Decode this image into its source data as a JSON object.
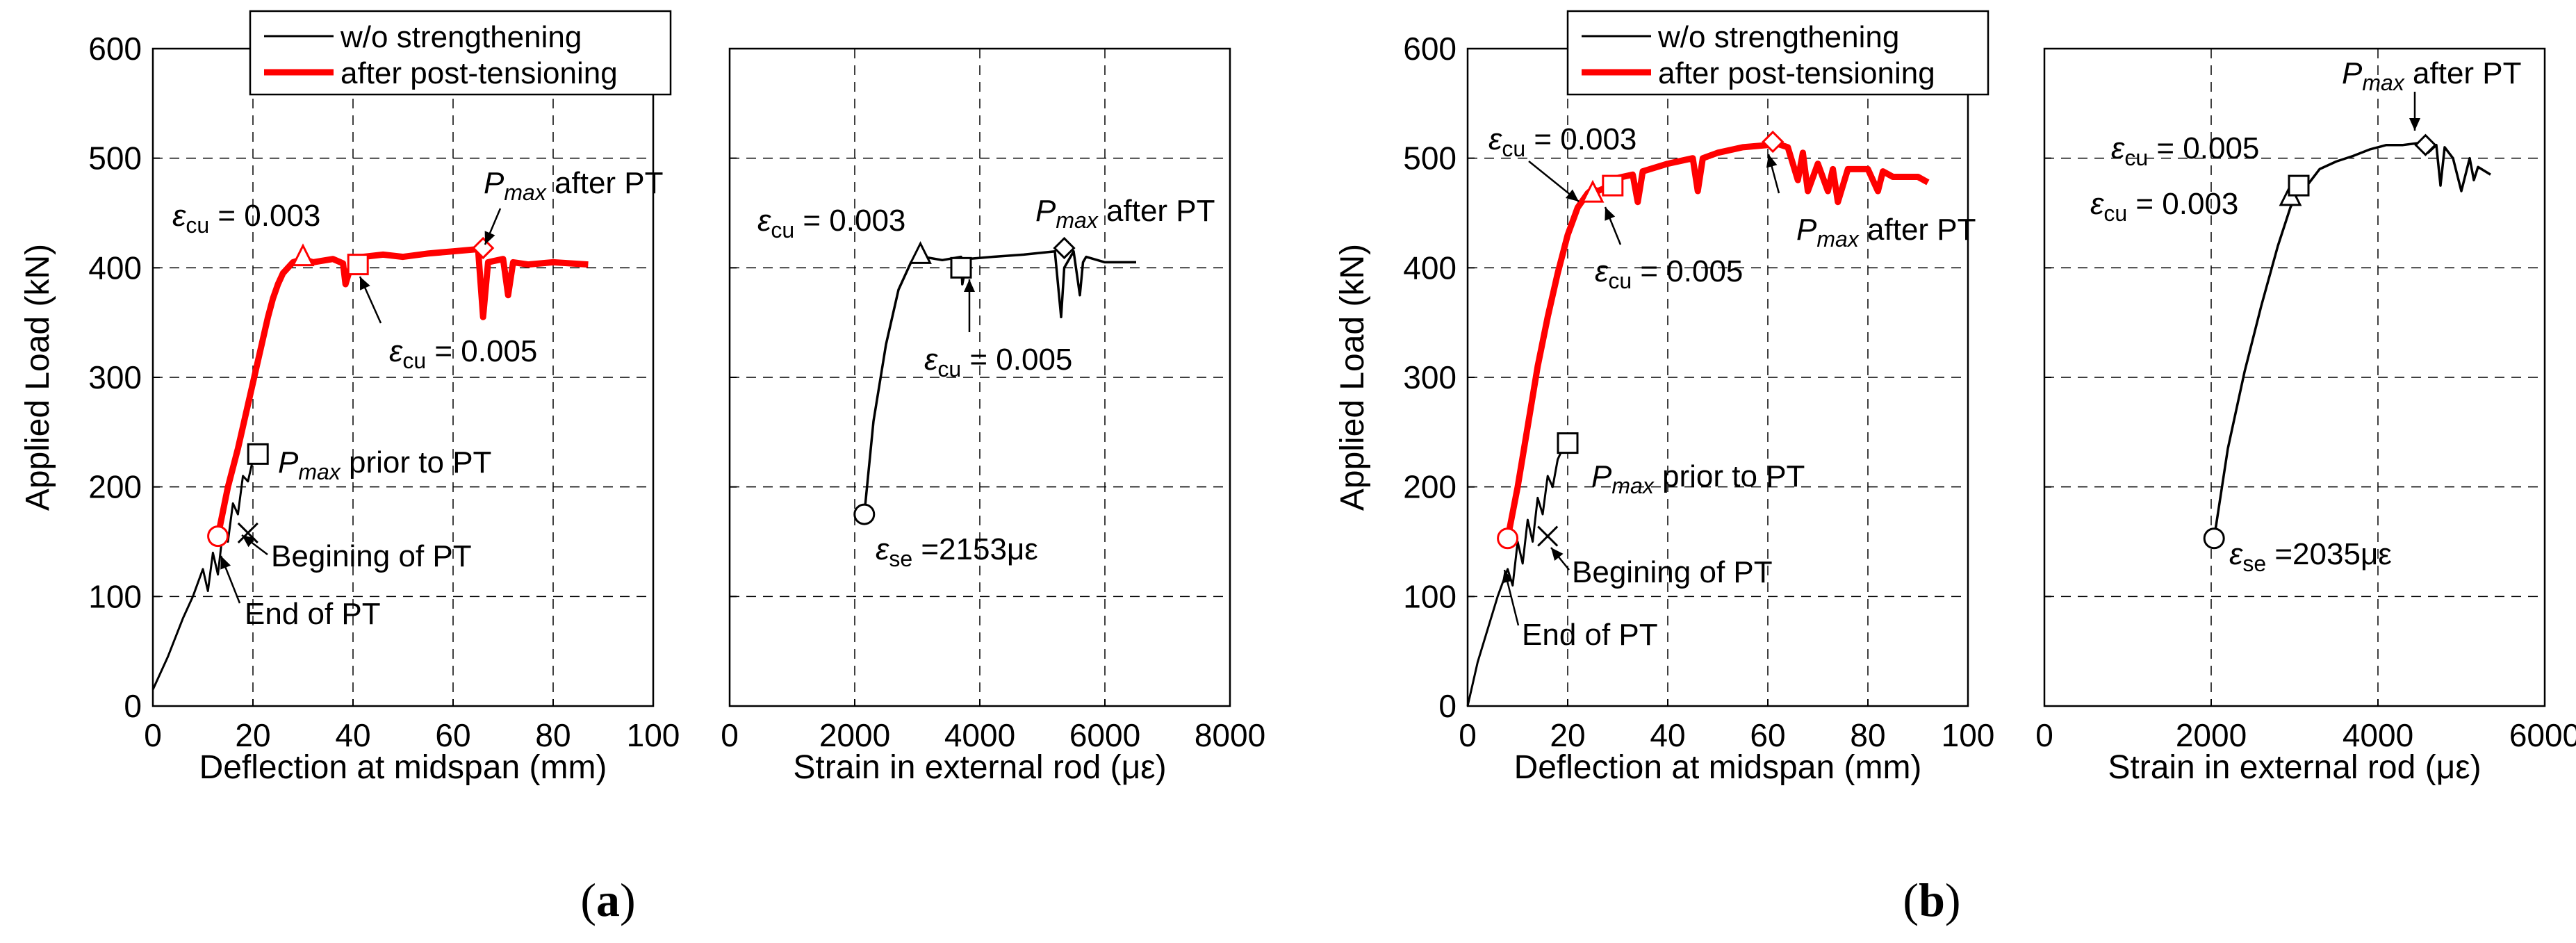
{
  "chart_data": [
    {
      "panel": "(a)",
      "panel_letter": "a",
      "paren_open": "(",
      "paren_close": ")",
      "type": "line",
      "legend": {
        "labels": [
          "w/o strengthening",
          "after post-tensioning"
        ],
        "colors": [
          "#000000",
          "#ff0000"
        ],
        "placement": "top"
      },
      "left": {
        "xlabel": "Deflection at midspan (mm)",
        "ylabel": "Applied Load (kN)",
        "xlim": [
          0,
          100
        ],
        "ylim": [
          0,
          600
        ],
        "xticks": [
          "0",
          "20",
          "40",
          "60",
          "80",
          "100"
        ],
        "yticks": [
          "0",
          "100",
          "200",
          "300",
          "400",
          "500",
          "600"
        ],
        "series": [
          {
            "name": "w/o strengthening",
            "color": "#000000",
            "x": [
              0,
              3,
              6,
              8,
              10,
              11,
              12,
              13,
              14,
              15,
              16,
              17,
              18,
              19,
              20,
              21
            ],
            "y": [
              15,
              45,
              80,
              100,
              125,
              105,
              140,
              120,
              160,
              150,
              185,
              175,
              210,
              205,
              225,
              230
            ]
          },
          {
            "name": "after post-tensioning",
            "color": "#ff0000",
            "x": [
              13,
              15,
              17,
              18,
              19,
              20,
              21,
              22,
              23,
              24,
              25,
              26,
              28,
              30,
              32,
              36,
              38,
              38.5,
              40,
              42,
              46,
              50,
              55,
              60,
              65,
              66,
              67,
              70,
              71,
              72,
              75,
              80,
              87
            ],
            "y": [
              155,
              200,
              235,
              255,
              275,
              295,
              315,
              335,
              355,
              372,
              385,
              395,
              405,
              408,
              405,
              408,
              404,
              385,
              408,
              410,
              412,
              410,
              413,
              415,
              417,
              355,
              405,
              408,
              375,
              405,
              403,
              405,
              403
            ]
          }
        ],
        "markers": [
          {
            "shape": "square",
            "x": 21,
            "y": 230,
            "color": "#000000"
          },
          {
            "shape": "x",
            "x": 19,
            "y": 158,
            "color": "#000000"
          },
          {
            "shape": "circle",
            "x": 13,
            "y": 155,
            "color": "#ff0000"
          },
          {
            "shape": "triangle",
            "x": 30,
            "y": 410,
            "color": "#ff0000"
          },
          {
            "shape": "square",
            "x": 41,
            "y": 403,
            "color": "#ff0000"
          },
          {
            "shape": "diamond",
            "x": 66,
            "y": 418,
            "color": "#ff0000"
          }
        ],
        "annotations": {
          "pmax_prior": {
            "sym": "P",
            "sub": "max",
            "text": "prior to PT"
          },
          "beginning": "Begining of PT",
          "end": "End of PT",
          "ecu_003": {
            "sym": "ε",
            "sub": "cu",
            "text": "= 0.003"
          },
          "ecu_005": {
            "sym": "ε",
            "sub": "cu",
            "text": "= 0.005"
          },
          "pmax_after": {
            "sym": "P",
            "sub": "max",
            "text": "after PT"
          }
        }
      },
      "right": {
        "xlabel": "Strain in external rod (με)",
        "xlim": [
          0,
          8000
        ],
        "ylim": [
          0,
          600
        ],
        "xticks": [
          "0",
          "2000",
          "4000",
          "6000",
          "8000"
        ],
        "series": [
          {
            "name": "strain",
            "color": "#000000",
            "x": [
              2153,
              2300,
              2500,
              2700,
              2900,
              3100,
              3400,
              3700,
              3720,
              3800,
              4200,
              4700,
              5200,
              5300,
              5350,
              5500,
              5600,
              5650,
              5700,
              6000,
              6500
            ],
            "y": [
              175,
              260,
              330,
              380,
              405,
              410,
              407,
              410,
              385,
              408,
              410,
              412,
              415,
              355,
              400,
              415,
              375,
              405,
              410,
              405,
              405
            ]
          }
        ],
        "markers": [
          {
            "shape": "circle",
            "x": 2153,
            "y": 175,
            "color": "#000000"
          },
          {
            "shape": "triangle",
            "x": 3050,
            "y": 412,
            "color": "#000000"
          },
          {
            "shape": "square",
            "x": 3700,
            "y": 400,
            "color": "#000000"
          },
          {
            "shape": "diamond",
            "x": 5350,
            "y": 418,
            "color": "#000000"
          }
        ],
        "annotations": {
          "ecu_003": {
            "sym": "ε",
            "sub": "cu",
            "text": "= 0.003"
          },
          "ecu_005": {
            "sym": "ε",
            "sub": "cu",
            "text": "= 0.005"
          },
          "pmax_after": {
            "sym": "P",
            "sub": "max",
            "text": "after PT"
          },
          "ese": {
            "sym": "ε",
            "sub": "se",
            "text": "=2153με"
          }
        }
      }
    },
    {
      "panel": "(b)",
      "panel_letter": "b",
      "paren_open": "(",
      "paren_close": ")",
      "type": "line",
      "legend": {
        "labels": [
          "w/o strengthening",
          "after post-tensioning"
        ],
        "colors": [
          "#000000",
          "#ff0000"
        ],
        "placement": "top"
      },
      "left": {
        "xlabel": "Deflection at midspan (mm)",
        "ylabel": "Applied Load (kN)",
        "xlim": [
          0,
          100
        ],
        "ylim": [
          0,
          600
        ],
        "xticks": [
          "0",
          "20",
          "40",
          "60",
          "80",
          "100"
        ],
        "yticks": [
          "0",
          "100",
          "200",
          "300",
          "400",
          "500",
          "600"
        ],
        "series": [
          {
            "name": "w/o strengthening",
            "color": "#000000",
            "x": [
              0,
              2,
              4,
              6,
              8,
              9,
              10,
              11,
              12,
              13,
              14,
              15,
              16,
              17,
              18,
              19,
              20
            ],
            "y": [
              0,
              40,
              70,
              100,
              125,
              110,
              150,
              130,
              170,
              150,
              190,
              175,
              210,
              200,
              225,
              235,
              240
            ]
          },
          {
            "name": "after post-tensioning",
            "color": "#ff0000",
            "x": [
              8,
              10,
              12,
              14,
              16,
              18,
              20,
              22,
              24,
              25,
              26,
              28,
              29,
              30,
              33,
              34,
              35,
              40,
              45,
              46,
              47,
              50,
              55,
              60,
              62,
              64,
              66,
              67,
              68,
              70,
              72,
              73,
              74,
              76,
              80,
              82,
              83,
              85,
              90,
              92
            ],
            "y": [
              153,
              200,
              255,
              310,
              355,
              395,
              430,
              455,
              468,
              472,
              470,
              474,
              478,
              482,
              485,
              460,
              488,
              495,
              500,
              470,
              500,
              505,
              510,
              512,
              513,
              510,
              480,
              505,
              470,
              495,
              470,
              490,
              460,
              490,
              490,
              470,
              488,
              483,
              483,
              478
            ]
          }
        ],
        "markers": [
          {
            "shape": "square",
            "x": 20,
            "y": 240,
            "color": "#000000"
          },
          {
            "shape": "x",
            "x": 16,
            "y": 155,
            "color": "#000000"
          },
          {
            "shape": "circle",
            "x": 8,
            "y": 153,
            "color": "#ff0000"
          },
          {
            "shape": "triangle",
            "x": 25,
            "y": 468,
            "color": "#ff0000"
          },
          {
            "shape": "square",
            "x": 29,
            "y": 475,
            "color": "#ff0000"
          },
          {
            "shape": "diamond",
            "x": 61,
            "y": 515,
            "color": "#ff0000"
          }
        ],
        "annotations": {
          "pmax_prior": {
            "sym": "P",
            "sub": "max",
            "text": "prior to PT"
          },
          "beginning": "Begining of PT",
          "end": "End of PT",
          "ecu_003": {
            "sym": "ε",
            "sub": "cu",
            "text": "= 0.003"
          },
          "ecu_005": {
            "sym": "ε",
            "sub": "cu",
            "text": "= 0.005"
          },
          "pmax_after": {
            "sym": "P",
            "sub": "max",
            "text": "after PT"
          }
        }
      },
      "right": {
        "xlabel": "Strain in external rod (με)",
        "xlim": [
          0,
          6000
        ],
        "ylim": [
          0,
          600
        ],
        "xticks": [
          "0",
          "2000",
          "4000",
          "6000"
        ],
        "series": [
          {
            "name": "strain",
            "color": "#000000",
            "x": [
              2035,
              2200,
              2400,
              2600,
              2800,
              2950,
              3050,
              3150,
              3300,
              3500,
              3700,
              3900,
              4100,
              4300,
              4500,
              4600,
              4700,
              4750,
              4800,
              4900,
              5000,
              5100,
              5150,
              5200,
              5350
            ],
            "y": [
              153,
              235,
              305,
              365,
              420,
              455,
              470,
              475,
              490,
              497,
              502,
              508,
              512,
              512,
              514,
              505,
              512,
              475,
              510,
              500,
              470,
              500,
              480,
              492,
              485
            ]
          }
        ],
        "markers": [
          {
            "shape": "circle",
            "x": 2035,
            "y": 153,
            "color": "#000000"
          },
          {
            "shape": "triangle",
            "x": 2950,
            "y": 465,
            "color": "#000000"
          },
          {
            "shape": "square",
            "x": 3050,
            "y": 475,
            "color": "#000000"
          },
          {
            "shape": "diamond",
            "x": 4570,
            "y": 512,
            "color": "#000000"
          }
        ],
        "annotations": {
          "ecu_003": {
            "sym": "ε",
            "sub": "cu",
            "text": "= 0.003"
          },
          "ecu_005": {
            "sym": "ε",
            "sub": "cu",
            "text": "= 0.005"
          },
          "pmax_after": {
            "sym": "P",
            "sub": "max",
            "text": "after PT"
          },
          "ese": {
            "sym": "ε",
            "sub": "se",
            "text": "=2035με"
          }
        }
      }
    }
  ]
}
